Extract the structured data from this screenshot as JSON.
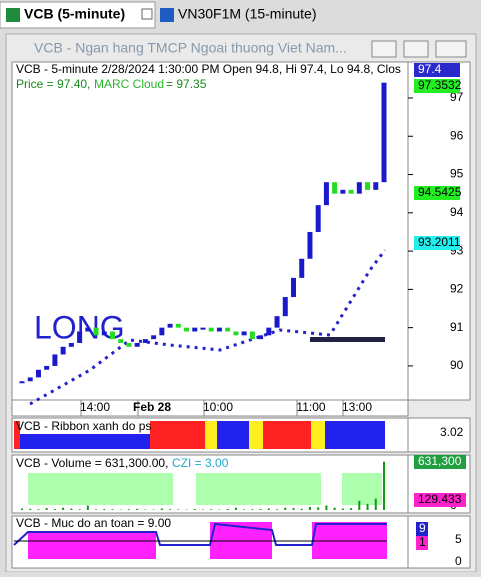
{
  "tabs": [
    "VCB (5-minute)",
    "VN30F1M (15-minute)"
  ],
  "window_title": "VCB - Ngan hang TMCP Ngoai thuong Viet Nam...",
  "price_panel": {
    "header": "VCB - 5-minute 2/28/2024 1:30:00 PM Open 94.8, Hi 97.4, Lo 94.8, Clos",
    "price_text": "Price = 97.40,",
    "cloud_name": "MARC Cloud",
    "cloud_text": "= 97.35",
    "signal": "LONG",
    "ylim": [
      89.11,
      97.94
    ],
    "yticks": [
      90,
      91,
      92,
      93,
      94,
      95,
      96,
      97
    ],
    "color": "#1a1acc",
    "closes": [
      89.6,
      89.7,
      89.9,
      90.0,
      90.3,
      90.5,
      90.6,
      90.9,
      91.0,
      90.8,
      90.9,
      90.7,
      90.6,
      90.5,
      90.6,
      90.7,
      90.8,
      91.0,
      91.1,
      91.0,
      90.9,
      91.0,
      91.0,
      90.9,
      91.0,
      90.9,
      90.8,
      90.9,
      90.7,
      90.8,
      91.0,
      91.3,
      91.8,
      92.3,
      92.8,
      93.5,
      94.2,
      94.8,
      94.5,
      94.6,
      94.5,
      94.8,
      94.6,
      94.8,
      97.4
    ],
    "value_labels": [
      {
        "text": "97.4",
        "color": "#2a2acc",
        "text_color": "#ffffff"
      },
      {
        "text": "97.3532",
        "color": "#22ee22",
        "text_color": "#000000"
      },
      {
        "text": "94.5425",
        "color": "#22ee22",
        "text_color": "#000000"
      },
      {
        "text": "93.2011",
        "color": "#22eeee",
        "text_color": "#000000"
      }
    ],
    "x_labels": [
      "14:00",
      "Feb 28",
      "10:00",
      "11:00",
      "13:00"
    ]
  },
  "ribbon_panel": {
    "title": "VCB - Ribbon xanh do ps",
    "value": "3.02"
  },
  "volume_panel": {
    "title": "VCB - Volume = 631,300.00,",
    "czi_text": "CZI = 3.00",
    "ylim": [
      0,
      680000
    ],
    "yticks": [
      0
    ],
    "values": [
      20000,
      15000,
      10000,
      25000,
      12000,
      30000,
      18000,
      10000,
      60000,
      8000,
      12000,
      10000,
      5000,
      9000,
      15000,
      7000,
      6000,
      20000,
      10000,
      8000,
      5000,
      12000,
      7000,
      9000,
      6000,
      14000,
      30000,
      8000,
      10000,
      12000,
      20000,
      9000,
      30000,
      25000,
      15000,
      40000,
      35000,
      60000,
      30000,
      20000,
      25000,
      120000,
      80000,
      150000,
      631300
    ],
    "labels": [
      {
        "text": "631,300",
        "color": "#1f9f3f"
      },
      {
        "text": "129.433",
        "color": "#ff22cc"
      }
    ]
  },
  "safety_panel": {
    "title": "VCB - Muc do an toan = 9.00",
    "yticks": [
      0,
      5
    ],
    "ylim": [
      -1,
      10
    ],
    "labels": [
      {
        "text": "9",
        "color": "#2222cc"
      },
      {
        "text": "1",
        "color": "#ff22cc"
      }
    ]
  }
}
